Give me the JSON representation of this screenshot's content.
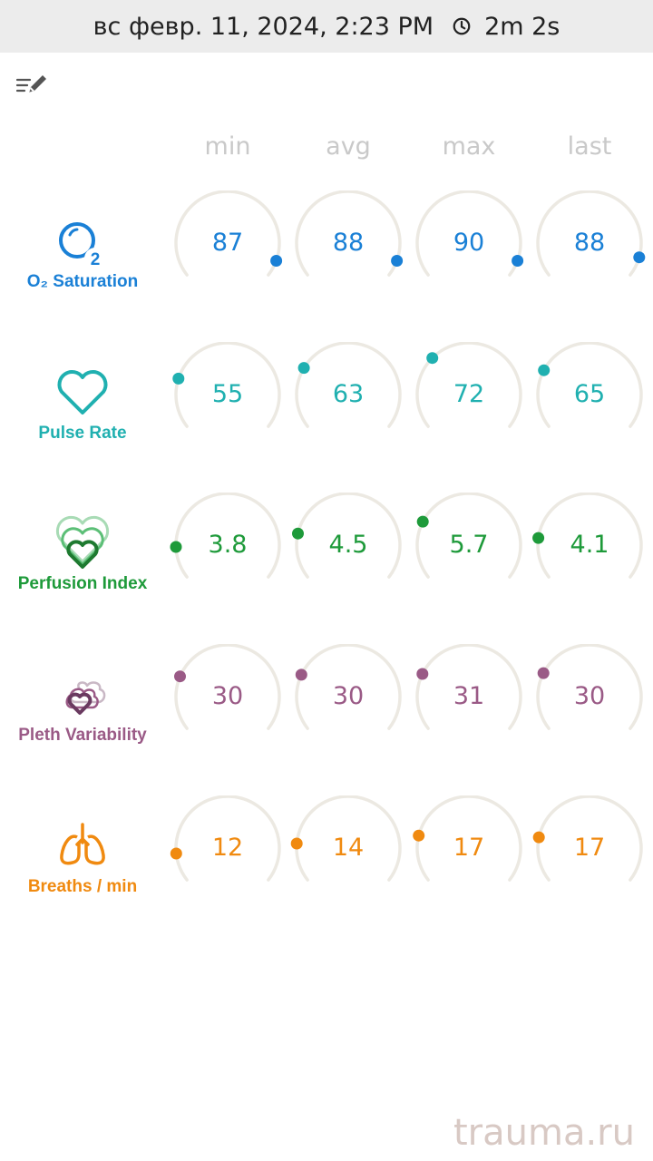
{
  "status_bar": {
    "datetime": "вс февр. 11, 2024, 2:23 PM",
    "duration": "2m 2s"
  },
  "columns": [
    "min",
    "avg",
    "max",
    "last"
  ],
  "metrics": [
    {
      "label": "O₂ Saturation",
      "icon": "o2-saturation-icon",
      "color": "#1a80d6",
      "values": [
        "87",
        "88",
        "90",
        "88"
      ]
    },
    {
      "label": "Pulse Rate",
      "icon": "heart-icon",
      "color": "#20b0b0",
      "values": [
        "55",
        "63",
        "72",
        "65"
      ]
    },
    {
      "label": "Perfusion Index",
      "icon": "perfusion-hearts-icon",
      "color": "#1e9a3a",
      "values": [
        "3.8",
        "4.5",
        "5.7",
        "4.1"
      ]
    },
    {
      "label": "Pleth Variability",
      "icon": "pleth-variability-icon",
      "color": "#9a5a86",
      "values": [
        "30",
        "30",
        "31",
        "30"
      ]
    },
    {
      "label": "Breaths / min",
      "icon": "lungs-icon",
      "color": "#f08a10",
      "values": [
        "12",
        "14",
        "17",
        "17"
      ]
    }
  ],
  "gauge_track_color": "#ece9e2",
  "watermark": "trauma.ru"
}
